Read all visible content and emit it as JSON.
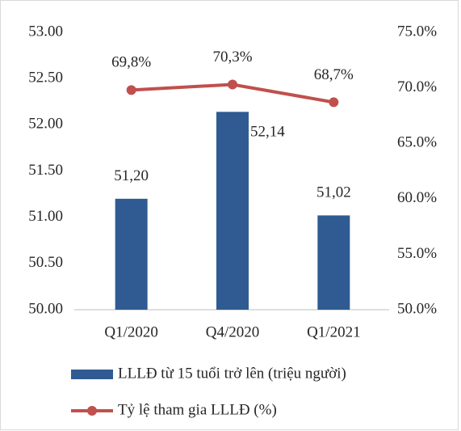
{
  "chart_data": {
    "type": "bar_line",
    "categories": [
      "Q1/2020",
      "Q4/2020",
      "Q1/2021"
    ],
    "series": [
      {
        "name": "LLLĐ từ 15 tuổi trở lên (triệu người)",
        "type": "bar",
        "color": "#2f5b92",
        "values": [
          51.2,
          52.14,
          51.02
        ],
        "value_labels": [
          "51,20",
          "52,14",
          "51,02"
        ]
      },
      {
        "name": "Tỷ lệ tham gia LLLĐ (%)",
        "type": "line",
        "axis": "y2",
        "color": "#c0504d",
        "values": [
          69.8,
          70.3,
          68.7
        ],
        "value_labels": [
          "69,8%",
          "70,3%",
          "68,7%"
        ]
      }
    ],
    "ylim": [
      50,
      53
    ],
    "yticks": [
      {
        "value": 50,
        "label": "50.00"
      },
      {
        "value": 50.5,
        "label": "50.50"
      },
      {
        "value": 51,
        "label": "51.00"
      },
      {
        "value": 51.5,
        "label": "51.50"
      },
      {
        "value": 52,
        "label": "52.00"
      },
      {
        "value": 52.5,
        "label": "52.50"
      },
      {
        "value": 53,
        "label": "53.00"
      }
    ],
    "y2lim": [
      50,
      75
    ],
    "y2ticks": [
      {
        "value": 50,
        "label": "50.0%"
      },
      {
        "value": 55,
        "label": "55.0%"
      },
      {
        "value": 60,
        "label": "60.0%"
      },
      {
        "value": 65,
        "label": "65.0%"
      },
      {
        "value": 70,
        "label": "70.0%"
      },
      {
        "value": 75,
        "label": "75.0%"
      }
    ],
    "legend": "bottom-left",
    "grid": false
  }
}
